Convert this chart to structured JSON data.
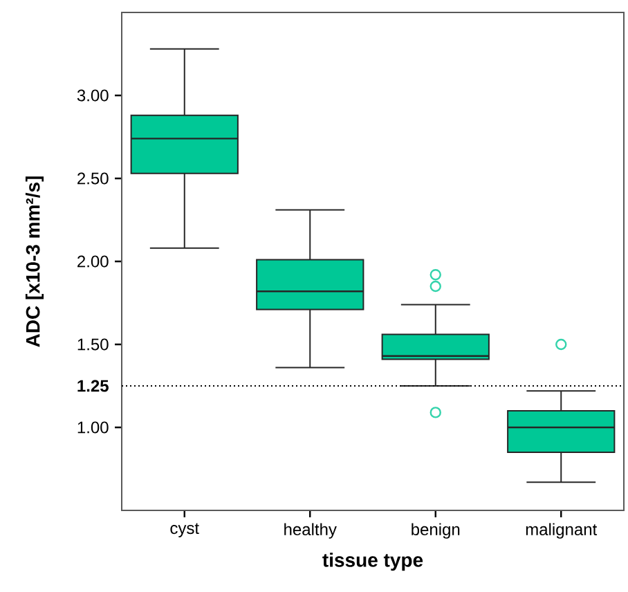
{
  "chart_data": {
    "type": "box",
    "categories": [
      "cyst",
      "healthy",
      "benign",
      "malignant"
    ],
    "xlabel": "tissue type",
    "ylabel": "ADC [x10-3 mm²/s]",
    "color": "#00c896",
    "boxes": [
      {
        "low": 2.08,
        "q1": 2.53,
        "median": 2.74,
        "q3": 2.88,
        "high": 3.28
      },
      {
        "low": 1.36,
        "q1": 1.71,
        "median": 1.82,
        "q3": 2.01,
        "high": 2.31
      },
      {
        "low": 1.25,
        "q1": 1.41,
        "median": 1.43,
        "q3": 1.56,
        "high": 1.74,
        "outliers": [
          1.92,
          1.85,
          1.09
        ]
      },
      {
        "low": 0.67,
        "q1": 0.85,
        "median": 1.0,
        "q3": 1.1,
        "high": 1.22,
        "outliers": [
          1.5
        ]
      }
    ],
    "ylim": [
      0.5,
      3.5
    ],
    "yticks": [
      {
        "value": 1.0,
        "label": "1.00"
      },
      {
        "value": 1.5,
        "label": "1.50"
      },
      {
        "value": 2.0,
        "label": "2.00"
      },
      {
        "value": 2.5,
        "label": "2.50"
      },
      {
        "value": 3.0,
        "label": "3.00"
      }
    ],
    "ref_lines": [
      {
        "axis": "y",
        "value": 1.25,
        "label": "1.25",
        "line_style": "dotted"
      }
    ]
  }
}
